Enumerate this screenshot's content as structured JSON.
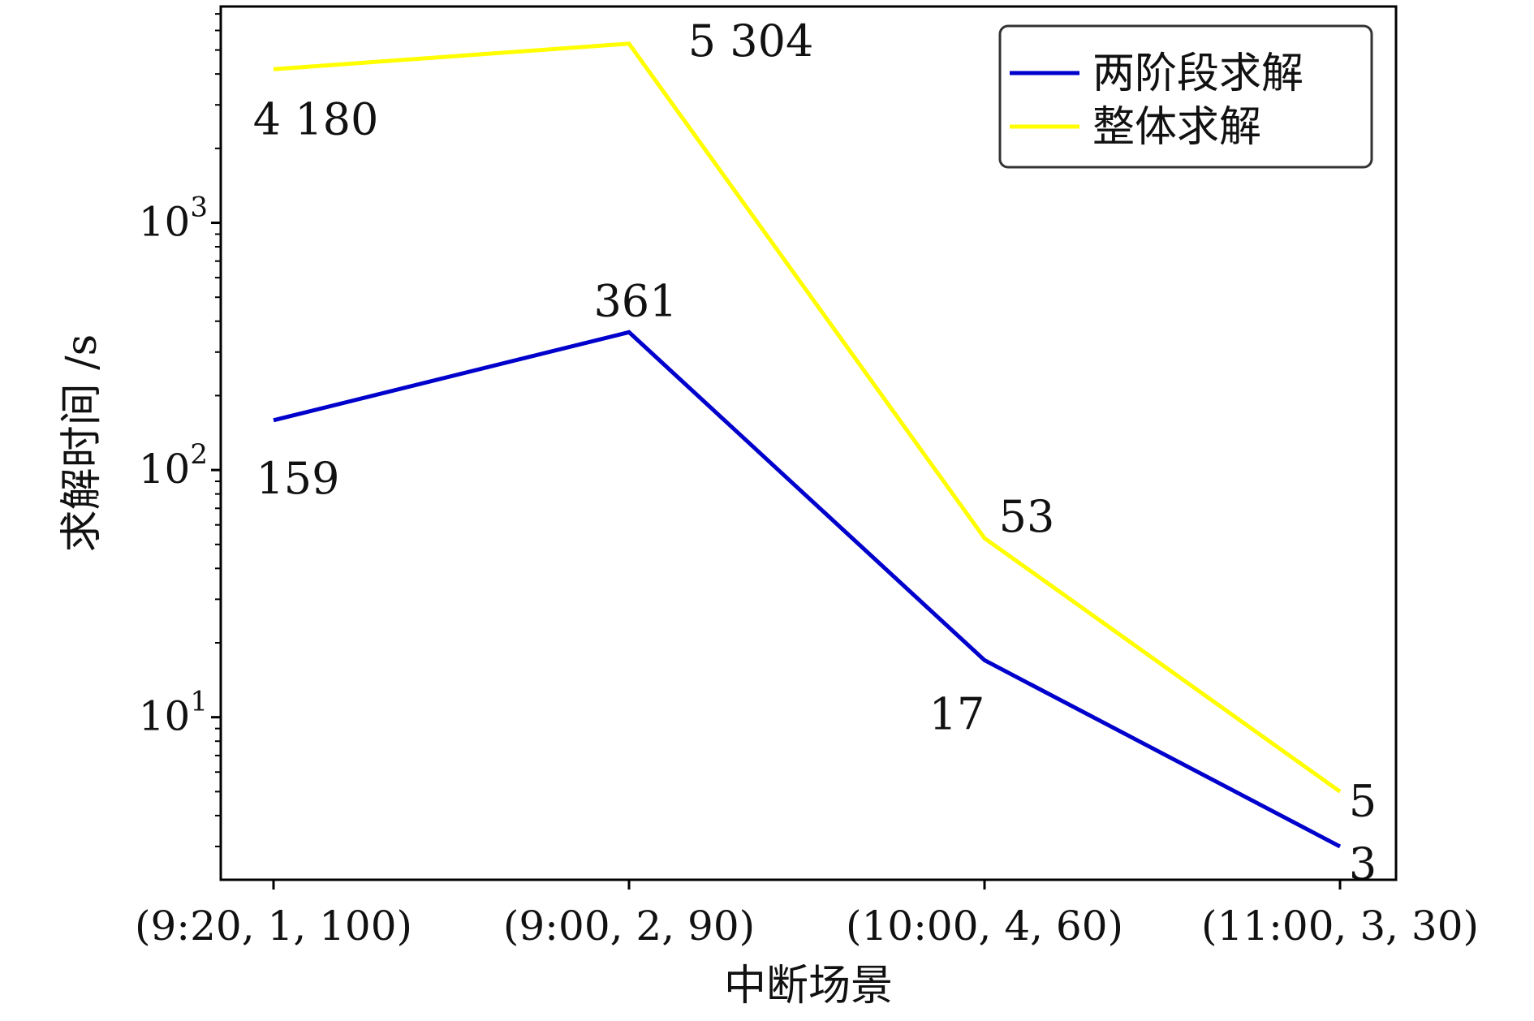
{
  "chart_data": {
    "type": "line",
    "xlabel": "中断场景",
    "ylabel": "求解时间 /s",
    "yscale": "log",
    "ylim": [
      2.2,
      7500
    ],
    "categories": [
      "(9:20, 1, 100)",
      "(9:00, 2, 90)",
      "(10:00, 4, 60)",
      "(11:00, 3, 30)"
    ],
    "yticks": [
      {
        "value": 10,
        "base": "10",
        "exp": "1"
      },
      {
        "value": 100,
        "base": "10",
        "exp": "2"
      },
      {
        "value": 1000,
        "base": "10",
        "exp": "3"
      }
    ],
    "grid": false,
    "legend_position": "top-right",
    "series": [
      {
        "name": "两阶段求解",
        "color": "#0000cc",
        "values": [
          159,
          361,
          17,
          3
        ],
        "labels": [
          "159",
          "361",
          "17",
          "3"
        ]
      },
      {
        "name": "整体求解",
        "color": "#ffff00",
        "values": [
          4180,
          5304,
          53,
          5
        ],
        "labels": [
          "4 180",
          "5 304",
          "53",
          "5"
        ]
      }
    ]
  }
}
